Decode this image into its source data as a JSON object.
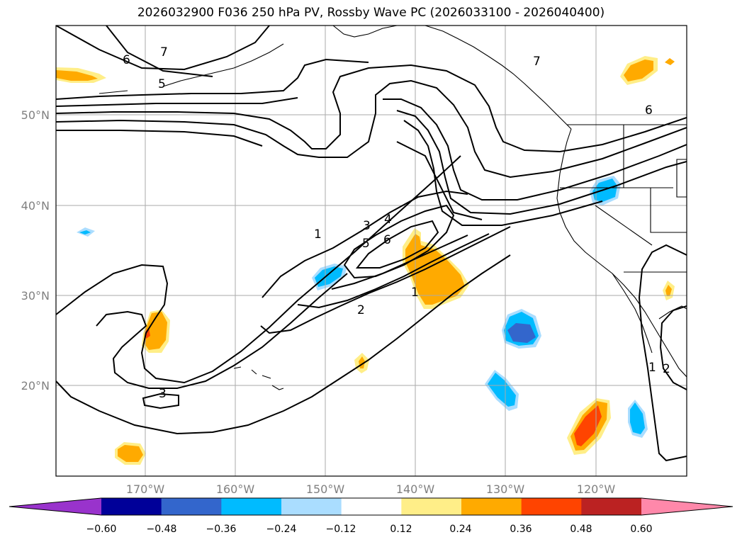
{
  "title": "2026032900 F036 250 hPa PV, Rossby Wave PC (2026033100 - 2026040400)",
  "latitude_labels": [
    "50°N",
    "40°N",
    "30°N",
    "20°N"
  ],
  "longitude_labels": [
    "170°W",
    "160°W",
    "150°W",
    "140°W",
    "130°W",
    "120°W"
  ],
  "colorbar": {
    "tick_labels": [
      "−0.60",
      "−0.48",
      "−0.36",
      "−0.24",
      "−0.12",
      "0.12",
      "0.24",
      "0.36",
      "0.48",
      "0.60"
    ],
    "colors": [
      "#9933cc",
      "#000099",
      "#3366cc",
      "#00bbff",
      "#aaddff",
      "#ffffff",
      "#ffee88",
      "#ffaa00",
      "#ff4400",
      "#bb2222",
      "#ff88aa"
    ]
  },
  "contour_labels": [
    "6",
    "7",
    "5",
    "6",
    "7",
    "1",
    "3",
    "4",
    "5",
    "6",
    "1",
    "2",
    "3",
    "1",
    "2"
  ],
  "colors": {
    "positive_anomaly": "#ffaa00",
    "positive_weak": "#ffee88",
    "positive_strong": "#ff4400",
    "negative_anomaly": "#00bbff",
    "negative_weak": "#aaddff",
    "negative_strong": "#3366cc",
    "grid": "#aaaaaa",
    "contour": "#000000"
  }
}
